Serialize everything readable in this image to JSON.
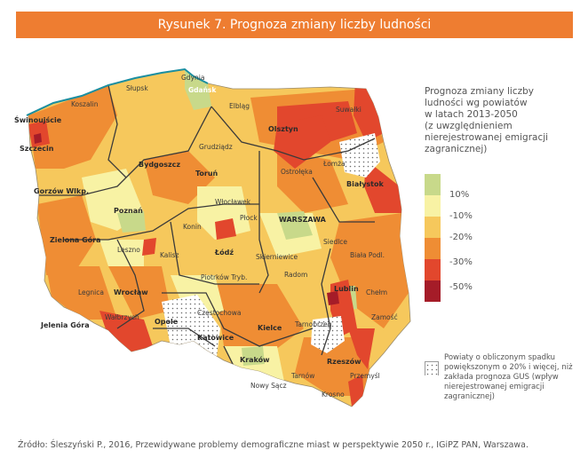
{
  "header": {
    "title": "Rysunek 7. Prognoza zmiany liczby ludności"
  },
  "legend": {
    "title_lines": [
      "Prognoza zmiany liczby",
      "ludności wg powiatów",
      "w latach 2013-2050",
      "(z uwzględnieniem",
      "nierejestrowanej emigracji",
      "zagranicznej)"
    ],
    "classes": [
      {
        "color": "#c8d98a",
        "label": "10%"
      },
      {
        "color": "#f8f2a4",
        "label": "-10%"
      },
      {
        "color": "#f6c85c",
        "label": "-20%"
      },
      {
        "color": "#ef8d34",
        "label": "-30%"
      },
      {
        "color": "#e2472d",
        "label": "-50%"
      },
      {
        "color": "#a51c28",
        "label": ""
      }
    ],
    "note": "Powiaty o obliczonym spadku powiększonym o 20% i więcej, niż zakłada prognoza GUS (wpływ nierejestrowanej emigracji zagranicznej)"
  },
  "map": {
    "cities": [
      {
        "name": "Gdynia",
        "style": "normal"
      },
      {
        "name": "Gdańsk",
        "style": "white"
      },
      {
        "name": "Słupsk",
        "style": "normal"
      },
      {
        "name": "Koszalin",
        "style": "normal"
      },
      {
        "name": "Świnoujście",
        "style": "bold"
      },
      {
        "name": "Szczecin",
        "style": "bold"
      },
      {
        "name": "Elbląg",
        "style": "normal"
      },
      {
        "name": "Olsztyn",
        "style": "bold"
      },
      {
        "name": "Suwałki",
        "style": "normal"
      },
      {
        "name": "Łomża",
        "style": "normal"
      },
      {
        "name": "Białystok",
        "style": "bold"
      },
      {
        "name": "Grudziądz",
        "style": "normal"
      },
      {
        "name": "Bydgoszcz",
        "style": "bold"
      },
      {
        "name": "Toruń",
        "style": "bold"
      },
      {
        "name": "Ostrołęka",
        "style": "normal"
      },
      {
        "name": "Gorzów Wlkp.",
        "style": "bold"
      },
      {
        "name": "Poznań",
        "style": "bold"
      },
      {
        "name": "Włocławek",
        "style": "normal"
      },
      {
        "name": "Płock",
        "style": "normal"
      },
      {
        "name": "WARSZAWA",
        "style": "bold"
      },
      {
        "name": "Konin",
        "style": "normal"
      },
      {
        "name": "Siedlce",
        "style": "normal"
      },
      {
        "name": "Zielona Góra",
        "style": "bold"
      },
      {
        "name": "Leszno",
        "style": "normal"
      },
      {
        "name": "Kalisz",
        "style": "normal"
      },
      {
        "name": "Łódź",
        "style": "bold"
      },
      {
        "name": "Skierniewice",
        "style": "normal"
      },
      {
        "name": "Biała Podl.",
        "style": "normal"
      },
      {
        "name": "Radom",
        "style": "normal"
      },
      {
        "name": "Piotrków Tryb.",
        "style": "normal"
      },
      {
        "name": "Legnica",
        "style": "normal"
      },
      {
        "name": "Wrocław",
        "style": "bold"
      },
      {
        "name": "Lublin",
        "style": "bold"
      },
      {
        "name": "Chełm",
        "style": "normal"
      },
      {
        "name": "Wałbrzych",
        "style": "normal"
      },
      {
        "name": "Opole",
        "style": "bold"
      },
      {
        "name": "Częstochowa",
        "style": "normal"
      },
      {
        "name": "Zamość",
        "style": "normal"
      },
      {
        "name": "Jelenia Góra",
        "style": "bold"
      },
      {
        "name": "Kielce",
        "style": "bold"
      },
      {
        "name": "Tarnobrzeg",
        "style": "normal"
      },
      {
        "name": "Katowice",
        "style": "bold"
      },
      {
        "name": "Kraków",
        "style": "bold"
      },
      {
        "name": "Rzeszów",
        "style": "bold"
      },
      {
        "name": "Tarnów",
        "style": "normal"
      },
      {
        "name": "Przemyśl",
        "style": "normal"
      },
      {
        "name": "Nowy Sącz",
        "style": "normal"
      },
      {
        "name": "Krosno",
        "style": "normal"
      }
    ]
  },
  "source": "Źródło: Śleszyński P., 2016, Przewidywane problemy demograficzne miast w perspektywie 2050 r., IGiPZ PAN, Warszawa."
}
